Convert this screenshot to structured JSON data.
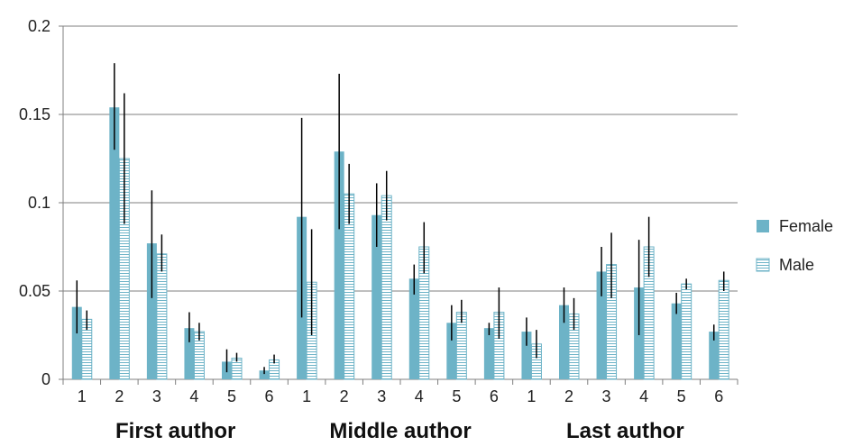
{
  "chart_data": {
    "type": "bar",
    "ylim": [
      0,
      0.2
    ],
    "yticks": [
      "0",
      "0.05",
      "0.1",
      "0.15",
      "0.2"
    ],
    "ytick_values": [
      0,
      0.05,
      0.1,
      0.15,
      0.2
    ],
    "grid": true,
    "legend_position": "right",
    "groups": [
      {
        "name": "First author",
        "categories": [
          "1",
          "2",
          "3",
          "4",
          "5",
          "6"
        ]
      },
      {
        "name": "Middle author",
        "categories": [
          "1",
          "2",
          "3",
          "4",
          "5",
          "6"
        ]
      },
      {
        "name": "Last author",
        "categories": [
          "1",
          "2",
          "3",
          "4",
          "5",
          "6"
        ]
      }
    ],
    "series": [
      {
        "name": "Female",
        "color": "#6db3c7",
        "pattern": "solid",
        "values": [
          0.041,
          0.154,
          0.077,
          0.029,
          0.01,
          0.005,
          0.092,
          0.129,
          0.093,
          0.057,
          0.032,
          0.029,
          0.027,
          0.042,
          0.061,
          0.052,
          0.043,
          0.027
        ],
        "err_low": [
          0.026,
          0.13,
          0.046,
          0.021,
          0.004,
          0.003,
          0.035,
          0.085,
          0.075,
          0.048,
          0.022,
          0.025,
          0.019,
          0.032,
          0.047,
          0.025,
          0.037,
          0.022
        ],
        "err_high": [
          0.056,
          0.179,
          0.107,
          0.038,
          0.017,
          0.007,
          0.148,
          0.173,
          0.111,
          0.065,
          0.042,
          0.032,
          0.035,
          0.052,
          0.075,
          0.079,
          0.049,
          0.031
        ]
      },
      {
        "name": "Male",
        "color": "#6db3c7",
        "pattern": "striped",
        "values": [
          0.034,
          0.125,
          0.071,
          0.027,
          0.012,
          0.011,
          0.055,
          0.105,
          0.104,
          0.075,
          0.038,
          0.038,
          0.02,
          0.037,
          0.065,
          0.075,
          0.054,
          0.056
        ],
        "err_low": [
          0.028,
          0.088,
          0.061,
          0.022,
          0.01,
          0.009,
          0.025,
          0.088,
          0.09,
          0.06,
          0.032,
          0.023,
          0.012,
          0.028,
          0.046,
          0.058,
          0.051,
          0.05
        ],
        "err_high": [
          0.039,
          0.162,
          0.082,
          0.032,
          0.015,
          0.014,
          0.085,
          0.122,
          0.118,
          0.089,
          0.045,
          0.052,
          0.028,
          0.046,
          0.083,
          0.092,
          0.057,
          0.061
        ]
      }
    ]
  }
}
